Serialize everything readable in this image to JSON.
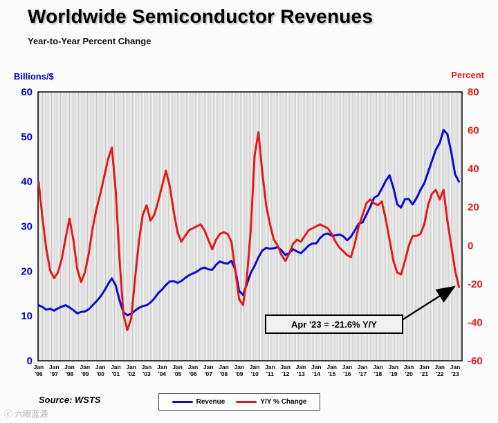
{
  "title": "Worldwide Semiconductor Revenues",
  "subtitle": "Year-to-Year Percent Change",
  "source": "Source: WSTS",
  "watermark": "ⓒ 六眼蓝源",
  "annotation": {
    "text": "Apr '23 = -21.6% Y/Y"
  },
  "chart_data": {
    "type": "line",
    "title": "Worldwide Semiconductor Revenues",
    "subtitle": "Year-to-Year Percent Change",
    "x_axis": {
      "min": 1995.96,
      "max": 2023.45,
      "tick_month_label": "Jan",
      "tick_years": [
        [
          "'96",
          1996
        ],
        [
          "'97",
          1997
        ],
        [
          "'98",
          1998
        ],
        [
          "'99",
          1999
        ],
        [
          "'00",
          2000
        ],
        [
          "'01",
          2001
        ],
        [
          "'02",
          2002
        ],
        [
          "'03",
          2003
        ],
        [
          "'04",
          2004
        ],
        [
          "'05",
          2005
        ],
        [
          "'06",
          2006
        ],
        [
          "'07",
          2007
        ],
        [
          "'08",
          2008
        ],
        [
          "'09",
          2009
        ],
        [
          "'10",
          2010
        ],
        [
          "'11",
          2011
        ],
        [
          "'12",
          2012
        ],
        [
          "'13",
          2013
        ],
        [
          "'14",
          2014
        ],
        [
          "'15",
          2015
        ],
        [
          "'16",
          2016
        ],
        [
          "'17",
          2017
        ],
        [
          "'18",
          2018
        ],
        [
          "'19",
          2019
        ],
        [
          "'20",
          2020
        ],
        [
          "'21",
          2021
        ],
        [
          "'22",
          2022
        ],
        [
          "'23",
          2023
        ]
      ]
    },
    "left_axis": {
      "title": "Billions/$",
      "color": "#0000cc",
      "min": 0,
      "max": 60,
      "ticks": [
        0,
        10,
        20,
        30,
        40,
        50,
        60
      ]
    },
    "right_axis": {
      "title": "Percent",
      "color": "#e31a1a",
      "min": -60,
      "max": 80,
      "ticks": [
        -60,
        -40,
        -20,
        0,
        20,
        40,
        60,
        80
      ]
    },
    "grid": {
      "vertical_monthly": true,
      "color": "#c9c9c9"
    },
    "legend_position": "bottom-center",
    "series": [
      {
        "name": "Revenue",
        "axis": "left",
        "color": "#0a0ad2",
        "points": [
          [
            1996.0,
            12.4
          ],
          [
            1996.25,
            12.0
          ],
          [
            1996.5,
            11.4
          ],
          [
            1996.75,
            11.6
          ],
          [
            1997.0,
            11.2
          ],
          [
            1997.25,
            11.7
          ],
          [
            1997.5,
            12.1
          ],
          [
            1997.75,
            12.4
          ],
          [
            1998.0,
            11.9
          ],
          [
            1998.25,
            11.3
          ],
          [
            1998.5,
            10.6
          ],
          [
            1998.75,
            10.9
          ],
          [
            1999.0,
            11.0
          ],
          [
            1999.25,
            11.5
          ],
          [
            1999.5,
            12.4
          ],
          [
            1999.75,
            13.3
          ],
          [
            2000.0,
            14.3
          ],
          [
            2000.25,
            15.6
          ],
          [
            2000.5,
            17.1
          ],
          [
            2000.75,
            18.4
          ],
          [
            2001.0,
            16.8
          ],
          [
            2001.25,
            13.4
          ],
          [
            2001.5,
            10.8
          ],
          [
            2001.75,
            10.2
          ],
          [
            2002.0,
            10.5
          ],
          [
            2002.25,
            11.2
          ],
          [
            2002.5,
            11.8
          ],
          [
            2002.75,
            12.2
          ],
          [
            2003.0,
            12.4
          ],
          [
            2003.25,
            13.0
          ],
          [
            2003.5,
            13.9
          ],
          [
            2003.75,
            15.1
          ],
          [
            2004.0,
            15.9
          ],
          [
            2004.25,
            16.9
          ],
          [
            2004.5,
            17.7
          ],
          [
            2004.75,
            17.8
          ],
          [
            2005.0,
            17.4
          ],
          [
            2005.25,
            17.8
          ],
          [
            2005.5,
            18.5
          ],
          [
            2005.75,
            19.1
          ],
          [
            2006.0,
            19.5
          ],
          [
            2006.25,
            19.9
          ],
          [
            2006.5,
            20.5
          ],
          [
            2006.75,
            20.8
          ],
          [
            2007.0,
            20.4
          ],
          [
            2007.25,
            20.3
          ],
          [
            2007.5,
            21.4
          ],
          [
            2007.75,
            22.2
          ],
          [
            2008.0,
            21.8
          ],
          [
            2008.25,
            21.7
          ],
          [
            2008.5,
            22.3
          ],
          [
            2008.75,
            20.3
          ],
          [
            2009.0,
            15.6
          ],
          [
            2009.25,
            14.7
          ],
          [
            2009.5,
            17.1
          ],
          [
            2009.75,
            19.6
          ],
          [
            2010.0,
            21.2
          ],
          [
            2010.25,
            23.1
          ],
          [
            2010.5,
            24.6
          ],
          [
            2010.75,
            25.2
          ],
          [
            2011.0,
            25.0
          ],
          [
            2011.25,
            25.1
          ],
          [
            2011.5,
            25.4
          ],
          [
            2011.75,
            24.6
          ],
          [
            2012.0,
            23.6
          ],
          [
            2012.25,
            24.1
          ],
          [
            2012.5,
            24.9
          ],
          [
            2012.75,
            24.4
          ],
          [
            2013.0,
            24.0
          ],
          [
            2013.25,
            24.8
          ],
          [
            2013.5,
            25.7
          ],
          [
            2013.75,
            26.2
          ],
          [
            2014.0,
            26.2
          ],
          [
            2014.25,
            27.4
          ],
          [
            2014.5,
            28.2
          ],
          [
            2014.75,
            28.4
          ],
          [
            2015.0,
            27.9
          ],
          [
            2015.25,
            28.0
          ],
          [
            2015.5,
            28.2
          ],
          [
            2015.75,
            27.8
          ],
          [
            2016.0,
            26.9
          ],
          [
            2016.25,
            27.7
          ],
          [
            2016.5,
            29.1
          ],
          [
            2016.75,
            30.6
          ],
          [
            2017.0,
            30.9
          ],
          [
            2017.25,
            32.6
          ],
          [
            2017.5,
            34.4
          ],
          [
            2017.75,
            36.4
          ],
          [
            2018.0,
            36.9
          ],
          [
            2018.25,
            38.4
          ],
          [
            2018.5,
            40.1
          ],
          [
            2018.75,
            41.4
          ],
          [
            2019.0,
            38.6
          ],
          [
            2019.25,
            34.9
          ],
          [
            2019.5,
            34.2
          ],
          [
            2019.75,
            36.1
          ],
          [
            2020.0,
            36.1
          ],
          [
            2020.25,
            34.9
          ],
          [
            2020.5,
            36.3
          ],
          [
            2020.75,
            38.1
          ],
          [
            2021.0,
            39.6
          ],
          [
            2021.25,
            42.1
          ],
          [
            2021.5,
            44.6
          ],
          [
            2021.75,
            47.1
          ],
          [
            2022.0,
            48.6
          ],
          [
            2022.25,
            51.5
          ],
          [
            2022.5,
            50.6
          ],
          [
            2022.75,
            46.6
          ],
          [
            2023.0,
            41.6
          ],
          [
            2023.25,
            40.0
          ]
        ]
      },
      {
        "name": "Y/Y % Change",
        "axis": "right",
        "color": "#e31a1a",
        "points": [
          [
            1996.0,
            33
          ],
          [
            1996.25,
            14
          ],
          [
            1996.5,
            -2
          ],
          [
            1996.75,
            -13
          ],
          [
            1997.0,
            -17
          ],
          [
            1997.25,
            -14
          ],
          [
            1997.5,
            -7
          ],
          [
            1997.75,
            4
          ],
          [
            1998.0,
            14
          ],
          [
            1998.25,
            3
          ],
          [
            1998.5,
            -12
          ],
          [
            1998.75,
            -19
          ],
          [
            1999.0,
            -14
          ],
          [
            1999.25,
            -4
          ],
          [
            1999.5,
            9
          ],
          [
            1999.75,
            19
          ],
          [
            2000.0,
            27
          ],
          [
            2000.25,
            36
          ],
          [
            2000.5,
            45
          ],
          [
            2000.75,
            51
          ],
          [
            2001.0,
            28
          ],
          [
            2001.25,
            -8
          ],
          [
            2001.5,
            -36
          ],
          [
            2001.75,
            -44
          ],
          [
            2002.0,
            -38
          ],
          [
            2002.25,
            -17
          ],
          [
            2002.5,
            2
          ],
          [
            2002.75,
            16
          ],
          [
            2003.0,
            21
          ],
          [
            2003.25,
            13
          ],
          [
            2003.5,
            16
          ],
          [
            2003.75,
            23
          ],
          [
            2004.0,
            31
          ],
          [
            2004.25,
            39
          ],
          [
            2004.5,
            31
          ],
          [
            2004.75,
            18
          ],
          [
            2005.0,
            7
          ],
          [
            2005.25,
            2
          ],
          [
            2005.5,
            5
          ],
          [
            2005.75,
            8
          ],
          [
            2006.0,
            9
          ],
          [
            2006.25,
            10
          ],
          [
            2006.5,
            11
          ],
          [
            2006.75,
            8
          ],
          [
            2007.0,
            3
          ],
          [
            2007.25,
            -2
          ],
          [
            2007.5,
            3
          ],
          [
            2007.75,
            6
          ],
          [
            2008.0,
            7
          ],
          [
            2008.25,
            6
          ],
          [
            2008.5,
            2
          ],
          [
            2008.75,
            -13
          ],
          [
            2009.0,
            -28
          ],
          [
            2009.25,
            -31
          ],
          [
            2009.5,
            -17
          ],
          [
            2009.75,
            8
          ],
          [
            2010.0,
            47
          ],
          [
            2010.25,
            59
          ],
          [
            2010.5,
            38
          ],
          [
            2010.75,
            21
          ],
          [
            2011.0,
            11
          ],
          [
            2011.25,
            3
          ],
          [
            2011.5,
            0
          ],
          [
            2011.75,
            -5
          ],
          [
            2012.0,
            -8
          ],
          [
            2012.25,
            -4
          ],
          [
            2012.5,
            1
          ],
          [
            2012.75,
            3
          ],
          [
            2013.0,
            2
          ],
          [
            2013.25,
            5
          ],
          [
            2013.5,
            8
          ],
          [
            2013.75,
            9
          ],
          [
            2014.0,
            10
          ],
          [
            2014.25,
            11
          ],
          [
            2014.5,
            10
          ],
          [
            2014.75,
            9
          ],
          [
            2015.0,
            6
          ],
          [
            2015.25,
            2
          ],
          [
            2015.5,
            -1
          ],
          [
            2015.75,
            -3
          ],
          [
            2016.0,
            -5
          ],
          [
            2016.25,
            -6
          ],
          [
            2016.5,
            1
          ],
          [
            2016.75,
            10
          ],
          [
            2017.0,
            16
          ],
          [
            2017.25,
            22
          ],
          [
            2017.5,
            24
          ],
          [
            2017.75,
            22
          ],
          [
            2018.0,
            21
          ],
          [
            2018.25,
            23
          ],
          [
            2018.5,
            14
          ],
          [
            2018.75,
            3
          ],
          [
            2019.0,
            -8
          ],
          [
            2019.25,
            -14
          ],
          [
            2019.5,
            -15
          ],
          [
            2019.75,
            -8
          ],
          [
            2020.0,
            0
          ],
          [
            2020.25,
            5
          ],
          [
            2020.5,
            5
          ],
          [
            2020.75,
            6
          ],
          [
            2021.0,
            11
          ],
          [
            2021.25,
            21
          ],
          [
            2021.5,
            27
          ],
          [
            2021.75,
            29
          ],
          [
            2022.0,
            24
          ],
          [
            2022.25,
            29
          ],
          [
            2022.5,
            13
          ],
          [
            2022.75,
            0
          ],
          [
            2023.0,
            -13
          ],
          [
            2023.25,
            -21.6
          ]
        ]
      }
    ],
    "annotation": {
      "text": "Apr '23 = -21.6% Y/Y",
      "points_to": "last Y/Y % Change value"
    }
  }
}
